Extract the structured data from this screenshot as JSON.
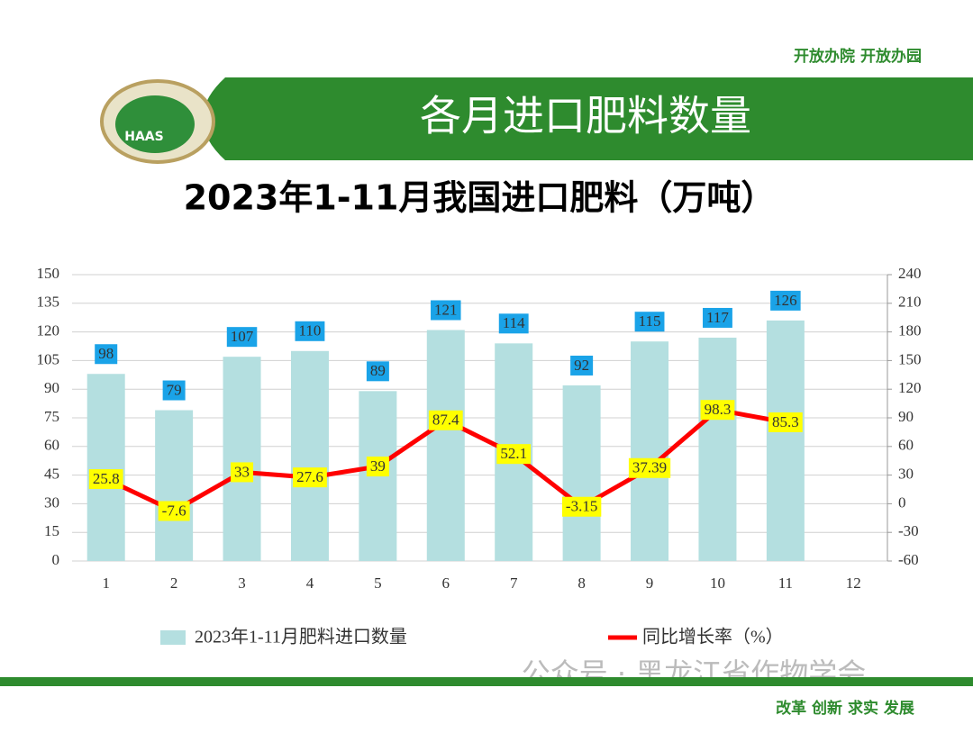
{
  "header": {
    "slogan": "开放办院  开放办园",
    "title": "各月进口肥料数量",
    "logo": "HAAS"
  },
  "footer": {
    "watermark": "公众号 · 黑龙江省作物学会",
    "motto": "改革 创新 求实  发展"
  },
  "chart_data": {
    "type": "bar",
    "title": "2023年1-11月我国进口肥料（万吨）",
    "categories": [
      "1",
      "2",
      "3",
      "4",
      "5",
      "6",
      "7",
      "8",
      "9",
      "10",
      "11",
      "12"
    ],
    "series": [
      {
        "name": "2023年1-11月肥料进口数量",
        "type": "bar",
        "color": "#b4dfe0",
        "label_color": "#1aa3e8",
        "values": [
          98,
          79,
          107,
          110,
          89,
          121,
          114,
          92,
          115,
          117,
          126,
          null
        ]
      },
      {
        "name": "同比增长率（%）",
        "type": "line",
        "axis": "y2",
        "color": "#ff0000",
        "label_color": "#ffff00",
        "values": [
          25.8,
          -7.6,
          33,
          27.6,
          39,
          87.4,
          52.1,
          -3.15,
          37.39,
          98.3,
          85.3,
          null
        ]
      }
    ],
    "ylim": [
      0,
      150
    ],
    "yticks": [
      0,
      15,
      30,
      45,
      60,
      75,
      90,
      105,
      120,
      135,
      150
    ],
    "y2lim": [
      -60,
      240
    ],
    "y2ticks": [
      -60,
      -30,
      0,
      30,
      60,
      90,
      120,
      150,
      180,
      210,
      240
    ],
    "grid": true,
    "legend": "bottom"
  }
}
